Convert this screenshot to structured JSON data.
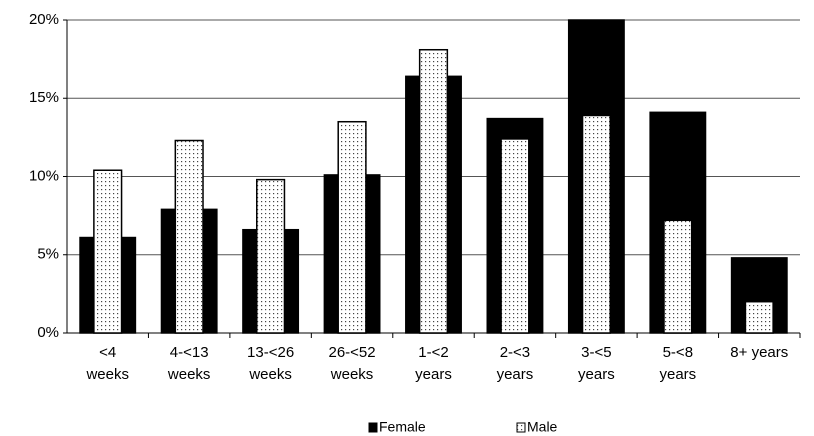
{
  "chart_data": {
    "type": "overlap_bar",
    "categories": [
      [
        "<4",
        "weeks"
      ],
      [
        "4-<13",
        "weeks"
      ],
      [
        "13-<26",
        "weeks"
      ],
      [
        "26-<52",
        "weeks"
      ],
      [
        "1-<2",
        "years"
      ],
      [
        "2-<3",
        "years"
      ],
      [
        "3-<5",
        "years"
      ],
      [
        "5-<8",
        "years"
      ],
      [
        "8+ years"
      ]
    ],
    "series": [
      {
        "name": "Female",
        "color": "#000000",
        "values": [
          6.1,
          7.9,
          6.6,
          10.1,
          16.4,
          13.7,
          20.0,
          14.1,
          4.8
        ]
      },
      {
        "name": "Male",
        "color": "#ffffff",
        "pattern": "dots",
        "values": [
          10.4,
          12.3,
          9.8,
          13.5,
          18.1,
          12.4,
          13.9,
          7.2,
          2.0
        ]
      }
    ],
    "ylim": [
      0,
      20
    ],
    "yticks": [
      {
        "value": 0,
        "label": "0%"
      },
      {
        "value": 5,
        "label": "5%"
      },
      {
        "value": 10,
        "label": "10%"
      },
      {
        "value": 15,
        "label": "15%"
      },
      {
        "value": 20,
        "label": "20%"
      }
    ],
    "grid": true,
    "legend": "bottom"
  }
}
